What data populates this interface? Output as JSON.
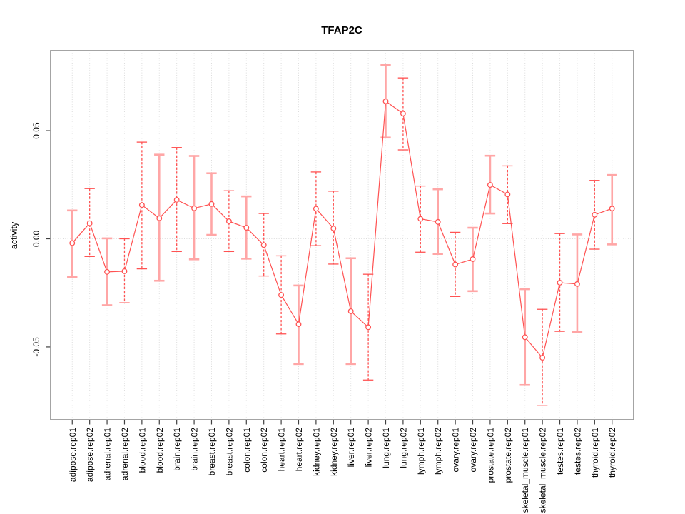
{
  "title": "TFAP2C",
  "ylabel": "activity",
  "chart_data": {
    "type": "line",
    "title": "TFAP2C",
    "xlabel": "",
    "ylabel": "activity",
    "legend": "none",
    "grid": "vertical dotted gridline per category plus dotted horizontal line at y=0",
    "point_style": "open circles with error bars",
    "categories": [
      "adipose.rep01",
      "adipose.rep02",
      "adrenal.rep01",
      "adrenal.rep02",
      "blood.rep01",
      "blood.rep02",
      "brain.rep01",
      "brain.rep02",
      "breast.rep01",
      "breast.rep02",
      "colon.rep01",
      "colon.rep02",
      "heart.rep01",
      "heart.rep02",
      "kidney.rep01",
      "kidney.rep02",
      "liver.rep01",
      "liver.rep02",
      "lung.rep01",
      "lung.rep02",
      "lymph.rep01",
      "lymph.rep02",
      "ovary.rep01",
      "ovary.rep02",
      "prostate.rep01",
      "prostate.rep02",
      "skeletal_muscle.rep01",
      "skeletal_muscle.rep02",
      "testes.rep01",
      "testes.rep02",
      "thyroid.rep01",
      "thyroid.rep02"
    ],
    "series": [
      {
        "name": "activity",
        "values": [
          -0.002,
          0.0072,
          -0.0153,
          -0.015,
          0.0156,
          0.0095,
          0.018,
          0.0141,
          0.0161,
          0.0081,
          0.0051,
          -0.0029,
          -0.026,
          -0.0395,
          0.0139,
          0.0048,
          -0.0335,
          -0.0409,
          0.0636,
          0.0579,
          0.0092,
          0.0078,
          -0.0119,
          -0.0094,
          0.0249,
          0.0205,
          -0.0455,
          -0.055,
          -0.0203,
          -0.0209,
          0.0111,
          0.014
        ],
        "error_high": [
          0.0131,
          0.0232,
          0.0002,
          0.0,
          0.0447,
          0.0389,
          0.0422,
          0.0383,
          0.0303,
          0.0222,
          0.0196,
          0.0117,
          -0.0079,
          -0.0216,
          0.0309,
          0.022,
          -0.009,
          -0.0164,
          0.0805,
          0.0744,
          0.0244,
          0.0229,
          0.003,
          0.0051,
          0.0384,
          0.0337,
          -0.0233,
          -0.0326,
          0.0024,
          0.002,
          0.027,
          0.0295
        ],
        "error_low": [
          -0.0176,
          -0.0082,
          -0.0307,
          -0.0296,
          -0.0139,
          -0.0194,
          -0.0059,
          -0.0095,
          0.0018,
          -0.0059,
          -0.0092,
          -0.0172,
          -0.044,
          -0.0579,
          -0.0032,
          -0.0117,
          -0.0579,
          -0.0653,
          0.0468,
          0.0411,
          -0.0062,
          -0.007,
          -0.0267,
          -0.0242,
          0.0117,
          0.007,
          -0.0676,
          -0.077,
          -0.0428,
          -0.0431,
          -0.0048,
          -0.0026
        ],
        "error_bar_styles": [
          "solid",
          "dashed",
          "solid",
          "dashed",
          "dashed",
          "solid",
          "dashed",
          "solid",
          "solid",
          "dashed",
          "solid",
          "dashed",
          "dashed",
          "solid",
          "dashed",
          "dashed",
          "solid",
          "dashed",
          "solid",
          "dashed",
          "dashed",
          "solid",
          "dashed",
          "solid",
          "solid",
          "dashed",
          "solid",
          "dashed",
          "dashed",
          "solid",
          "dashed",
          "solid"
        ]
      }
    ],
    "yticks": [
      -0.05,
      0,
      0.05
    ],
    "ytick_labels": [
      "-0.05",
      "0.00",
      "0.05"
    ],
    "ylim": [
      -0.0837,
      0.087
    ],
    "colors": {
      "point_line": "#ff5252",
      "error_bar_dashed": "#ff5252",
      "error_bar_solid": "#ffa6a6",
      "gridline": "#dcdcdc",
      "axis_box": "#9a9a9a",
      "tick": "#404040",
      "text": "#000000",
      "background": "#ffffff"
    }
  }
}
